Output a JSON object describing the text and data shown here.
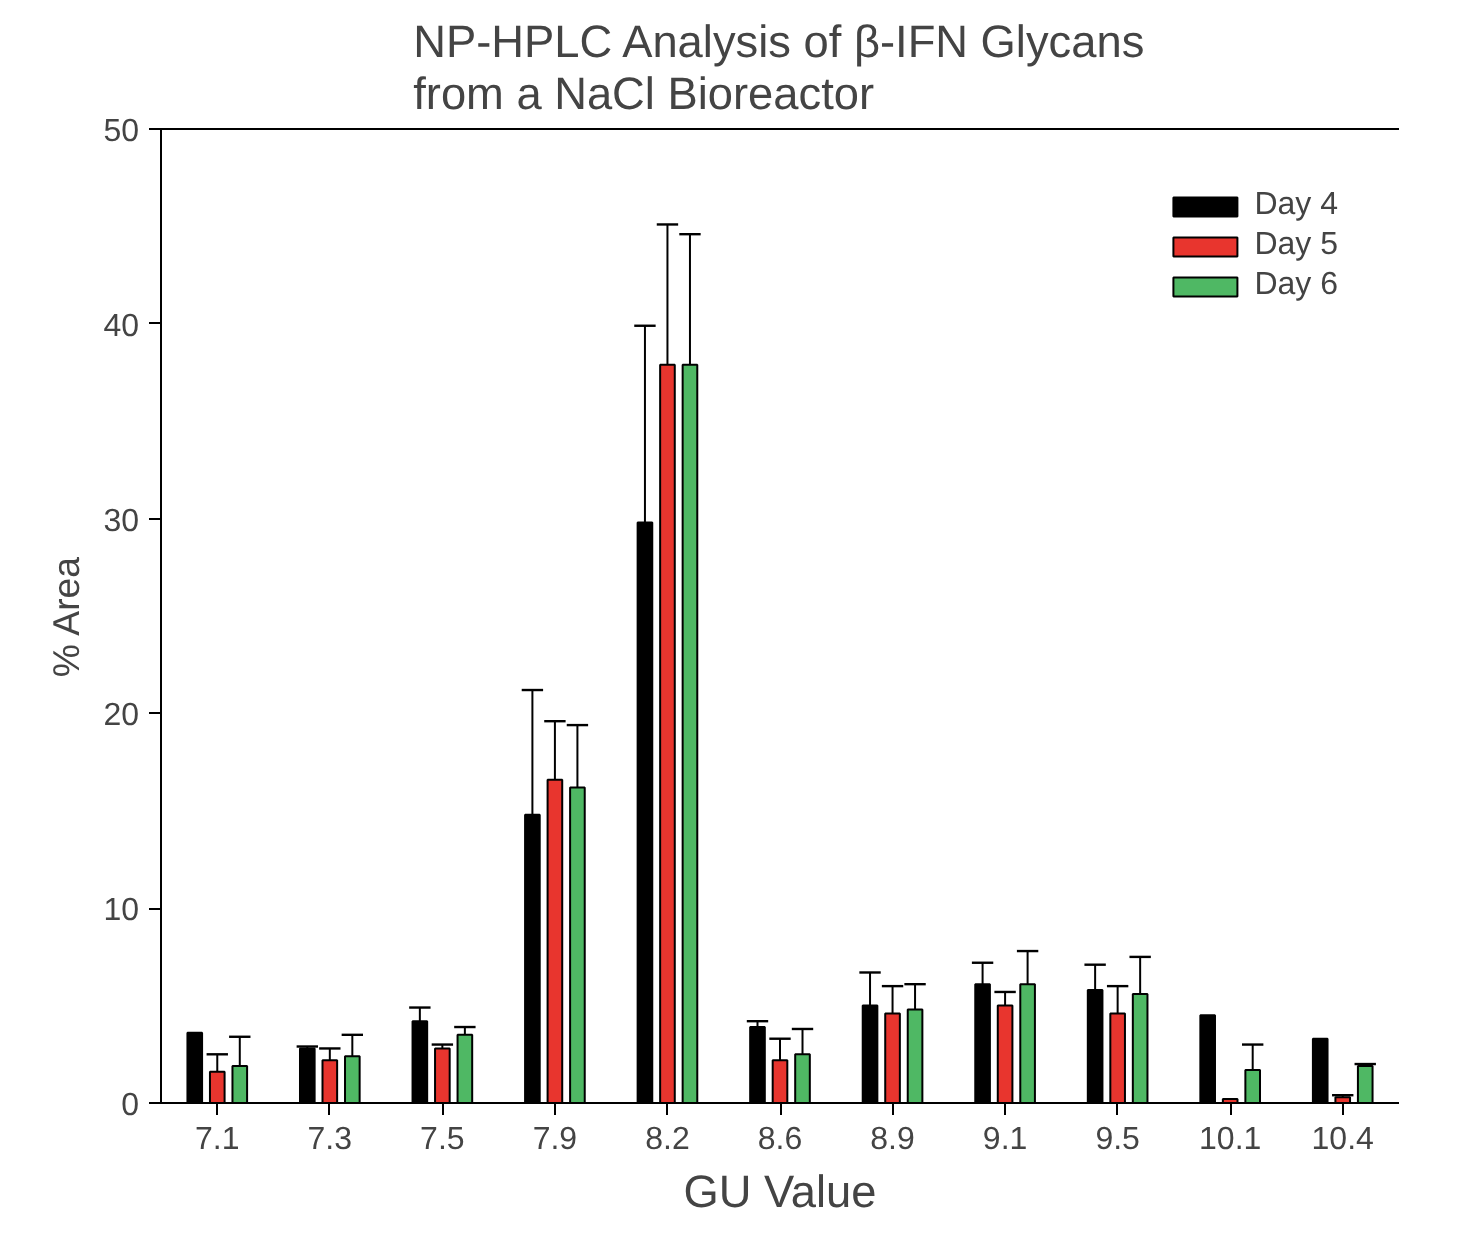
{
  "chart_data": {
    "type": "bar",
    "title": "NP-HPLC Analysis of β-IFN Glycans\nfrom a NaCl  Bioreactor",
    "xlabel": "GU Value",
    "ylabel": "% Area",
    "categories": [
      "7.1",
      "7.3",
      "7.5",
      "7.9",
      "8.2",
      "8.6",
      "8.9",
      "9.1",
      "9.5",
      "10.1",
      "10.4"
    ],
    "series": [
      {
        "name": "Day 4",
        "color": "#000000",
        "values": [
          3.6,
          2.8,
          4.2,
          14.8,
          29.8,
          3.9,
          5.0,
          6.1,
          5.8,
          4.5,
          3.3
        ],
        "errors": [
          null,
          [
            2.8,
            2.9
          ],
          [
            4.2,
            4.9
          ],
          [
            14.8,
            21.2
          ],
          [
            29.8,
            39.9
          ],
          [
            3.9,
            4.2
          ],
          [
            5.0,
            6.7
          ],
          [
            6.1,
            7.2
          ],
          [
            5.8,
            7.1
          ],
          null,
          null
        ]
      },
      {
        "name": "Day 5",
        "color": "#e8352e",
        "values": [
          1.6,
          2.2,
          2.8,
          16.6,
          37.9,
          2.2,
          4.6,
          5.0,
          4.6,
          0.2,
          0.3
        ],
        "errors": [
          [
            1.6,
            2.5
          ],
          [
            2.2,
            2.8
          ],
          [
            2.8,
            3.0
          ],
          [
            16.6,
            19.6
          ],
          [
            37.9,
            45.1
          ],
          [
            2.2,
            3.3
          ],
          [
            4.6,
            6.0
          ],
          [
            5.0,
            5.7
          ],
          [
            4.6,
            6.0
          ],
          null,
          [
            0.3,
            0.4
          ]
        ]
      },
      {
        "name": "Day 6",
        "color": "#4fb864",
        "values": [
          1.9,
          2.4,
          3.5,
          16.2,
          37.9,
          2.5,
          4.8,
          6.1,
          5.6,
          1.7,
          1.9
        ],
        "errors": [
          [
            1.9,
            3.4
          ],
          [
            2.4,
            3.5
          ],
          [
            3.5,
            3.9
          ],
          [
            16.2,
            19.4
          ],
          [
            37.9,
            44.6
          ],
          [
            2.5,
            3.8
          ],
          [
            4.8,
            6.1
          ],
          [
            6.1,
            7.8
          ],
          [
            5.6,
            7.5
          ],
          [
            1.7,
            3.0
          ],
          [
            1.9,
            2.0
          ]
        ]
      }
    ],
    "ylim": [
      0,
      50
    ],
    "yticks": [
      0,
      10,
      20,
      30,
      40,
      50
    ],
    "grid": false,
    "legend": "top right"
  }
}
